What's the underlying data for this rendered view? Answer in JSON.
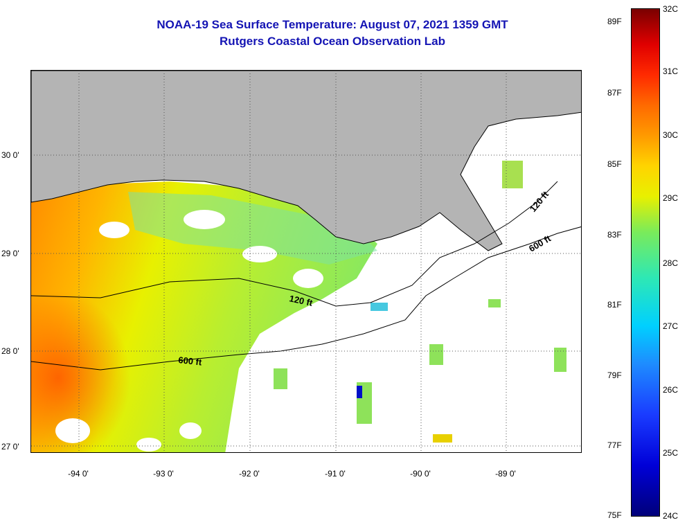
{
  "title": {
    "line1": "NOAA-19 Sea Surface Temperature:  August 07, 2021 1359 GMT",
    "line2": "Rutgers Coastal Ocean Observation Lab"
  },
  "map": {
    "longitude_labels": [
      "-94 0'",
      "-93 0'",
      "-92 0'",
      "-91 0'",
      "-90 0'",
      "-89 0'"
    ],
    "latitude_labels": [
      "30 0'",
      "29 0'",
      "28 0'",
      "27 0'"
    ],
    "isobath_labels": [
      "120 ft",
      "600 ft",
      "120 ft",
      "600 ft"
    ],
    "colors": {
      "land": "#b4b4b4",
      "grid": "#555555",
      "background": "#ffffff"
    }
  },
  "colorbar": {
    "fahrenheit_labels": [
      "89F",
      "87F",
      "85F",
      "83F",
      "81F",
      "79F",
      "77F",
      "75F"
    ],
    "celsius_labels": [
      "32C",
      "31C",
      "30C",
      "29C",
      "28C",
      "27C",
      "26C",
      "25C",
      "24C"
    ],
    "min_color": "#00007a",
    "max_color": "#7a0000"
  }
}
